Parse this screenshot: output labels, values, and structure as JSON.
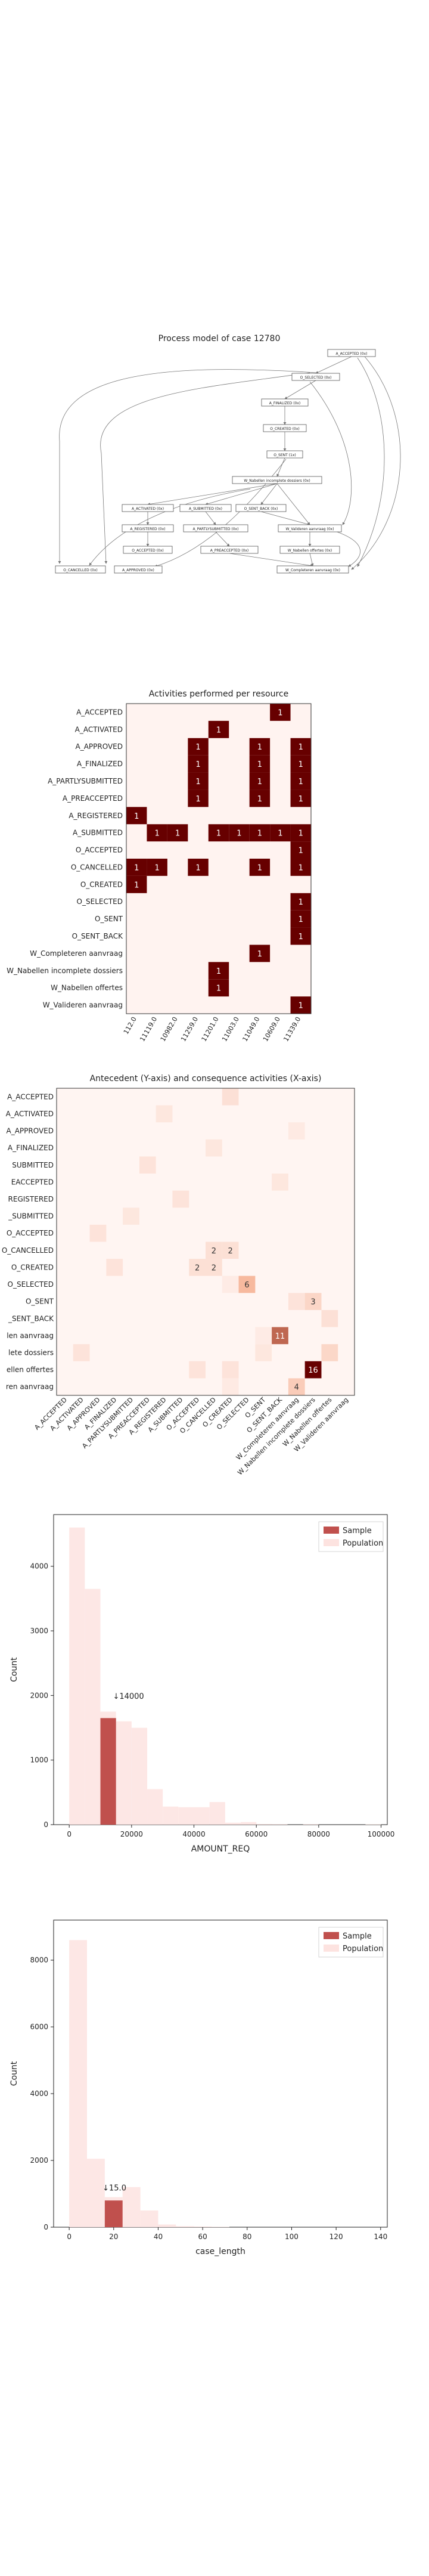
{
  "process_model": {
    "title": "Process model of case 12780",
    "nodes": [
      {
        "id": "accepted",
        "label": "A_ACCEPTED (0x)"
      },
      {
        "id": "selected",
        "label": "O_SELECTED (0x)"
      },
      {
        "id": "finalized",
        "label": "A_FINALIZED (0x)"
      },
      {
        "id": "created",
        "label": "O_CREATED (0x)"
      },
      {
        "id": "sent",
        "label": "O_SENT (1x)"
      },
      {
        "id": "nabellen",
        "label": "W_Nabellen incomplete dossiers (0x)"
      },
      {
        "id": "activated",
        "label": "A_ACTIVATED (0x)"
      },
      {
        "id": "submitted",
        "label": "A_SUBMITTED (0x)"
      },
      {
        "id": "sentback",
        "label": "O_SENT_BACK (0x)"
      },
      {
        "id": "registered",
        "label": "A_REGISTERED (0x)"
      },
      {
        "id": "partly",
        "label": "A_PARTLYSUBMITTED (0x)"
      },
      {
        "id": "valideren",
        "label": "W_Valideren aanvraag (0x)"
      },
      {
        "id": "oaccepted",
        "label": "O_ACCEPTED (0x)"
      },
      {
        "id": "preaccepted",
        "label": "A_PREACCEPTED (0x)"
      },
      {
        "id": "offertes",
        "label": "W_Nabellen offertes (0x)"
      },
      {
        "id": "cancelled",
        "label": "O_CANCELLED (0x)"
      },
      {
        "id": "approved",
        "label": "A_APPROVED (0x)"
      },
      {
        "id": "compleet",
        "label": "W_Completeren aanvraag (0x)"
      }
    ]
  },
  "chart_data": [
    {
      "type": "heatmap",
      "title": "Activities performed per resource",
      "rows": [
        "A_ACCEPTED",
        "A_ACTIVATED",
        "A_APPROVED",
        "A_FINALIZED",
        "A_PARTLYSUBMITTED",
        "A_PREACCEPTED",
        "A_REGISTERED",
        "A_SUBMITTED",
        "O_ACCEPTED",
        "O_CANCELLED",
        "O_CREATED",
        "O_SELECTED",
        "O_SENT",
        "O_SENT_BACK",
        "W_Completeren aanvraag",
        "W_Nabellen incomplete dossiers",
        "W_Nabellen offertes",
        "W_Valideren aanvraag"
      ],
      "cols": [
        "112.0",
        "11119.0",
        "10982.0",
        "11259.0",
        "11201.0",
        "11003.0",
        "11049.0",
        "10609.0",
        "11339.0"
      ],
      "cells": [
        [
          0,
          7,
          1
        ],
        [
          1,
          4,
          1
        ],
        [
          2,
          3,
          1
        ],
        [
          2,
          6,
          1
        ],
        [
          2,
          8,
          1
        ],
        [
          3,
          3,
          1
        ],
        [
          3,
          6,
          1
        ],
        [
          3,
          8,
          1
        ],
        [
          4,
          3,
          1
        ],
        [
          4,
          6,
          1
        ],
        [
          4,
          8,
          1
        ],
        [
          5,
          3,
          1
        ],
        [
          5,
          6,
          1
        ],
        [
          5,
          8,
          1
        ],
        [
          6,
          0,
          1
        ],
        [
          7,
          1,
          1
        ],
        [
          7,
          2,
          1
        ],
        [
          7,
          4,
          1
        ],
        [
          7,
          5,
          1
        ],
        [
          7,
          6,
          1
        ],
        [
          7,
          7,
          1
        ],
        [
          7,
          8,
          1
        ],
        [
          8,
          8,
          1
        ],
        [
          9,
          0,
          1
        ],
        [
          9,
          1,
          1
        ],
        [
          9,
          3,
          1
        ],
        [
          9,
          6,
          1
        ],
        [
          9,
          8,
          1
        ],
        [
          10,
          0,
          1
        ],
        [
          11,
          8,
          1
        ],
        [
          12,
          8,
          1
        ],
        [
          13,
          8,
          1
        ],
        [
          14,
          6,
          1
        ],
        [
          15,
          4,
          1
        ],
        [
          16,
          4,
          1
        ],
        [
          17,
          8,
          1
        ]
      ]
    },
    {
      "type": "heatmap",
      "title": "Antecedent (Y-axis) and consequence activities (X-axis)",
      "labels": [
        "A_ACCEPTED",
        "A_ACTIVATED",
        "A_APPROVED",
        "A_FINALIZED",
        "A_PARTLYSUBMITTED",
        "A_PREACCEPTED",
        "A_REGISTERED",
        "A_SUBMITTED",
        "O_ACCEPTED",
        "O_CANCELLED",
        "O_CREATED",
        "O_SELECTED",
        "O_SENT",
        "O_SENT_BACK",
        "W_Completeren aanvraag",
        "W_Nabellen incomplete dossiers",
        "W_Nabellen offertes",
        "W_Valideren aanvraag"
      ],
      "y_tick_labels": [
        "A_ACCEPTED",
        "A_ACTIVATED",
        "A_APPROVED",
        "A_FINALIZED",
        "SUBMITTED",
        "EACCEPTED",
        "REGISTERED",
        "_SUBMITTED",
        "O_ACCEPTED",
        "O_CANCELLED",
        "O_CREATED",
        "O_SELECTED",
        "O_SENT",
        "_SENT_BACK",
        "len aanvraag",
        "lete dossiers",
        "ellen offertes",
        "ren aanvraag"
      ],
      "annotated": [
        [
          9,
          9,
          "2"
        ],
        [
          9,
          10,
          "2"
        ],
        [
          10,
          8,
          "2"
        ],
        [
          10,
          9,
          "2"
        ],
        [
          11,
          11,
          "6"
        ],
        [
          12,
          15,
          "3"
        ],
        [
          14,
          13,
          "11"
        ],
        [
          16,
          15,
          "16"
        ],
        [
          17,
          14,
          "4"
        ]
      ],
      "faint": [
        [
          0,
          10,
          0.12
        ],
        [
          1,
          6,
          0.08
        ],
        [
          2,
          14,
          0.06
        ],
        [
          3,
          9,
          0.08
        ],
        [
          4,
          5,
          0.1
        ],
        [
          5,
          13,
          0.08
        ],
        [
          6,
          7,
          0.1
        ],
        [
          7,
          4,
          0.08
        ],
        [
          8,
          2,
          0.1
        ],
        [
          10,
          3,
          0.1
        ],
        [
          11,
          11,
          0.05
        ],
        [
          12,
          14,
          0.1
        ],
        [
          13,
          16,
          0.12
        ],
        [
          15,
          1,
          0.1
        ],
        [
          15,
          12,
          0.08
        ],
        [
          15,
          16,
          0.18
        ],
        [
          16,
          8,
          0.1
        ],
        [
          16,
          10,
          0.1
        ],
        [
          17,
          10,
          0.06
        ],
        [
          14,
          12,
          0.05
        ],
        [
          11,
          10,
          0.05
        ]
      ],
      "max_value": 16
    },
    {
      "type": "bar",
      "xlabel": "AMOUNT_REQ",
      "ylabel": "Count",
      "legend": [
        "Sample",
        "Population"
      ],
      "legend_position": "top-right",
      "xlim": [
        -5000,
        102000
      ],
      "ylim": [
        0,
        4800
      ],
      "x_ticks": [
        0,
        20000,
        40000,
        60000,
        80000,
        100000
      ],
      "y_ticks": [
        0,
        1000,
        2000,
        3000,
        4000
      ],
      "bin_width": 5000,
      "population": [
        {
          "x": 0,
          "count": 4600
        },
        {
          "x": 5000,
          "count": 3650
        },
        {
          "x": 10000,
          "count": 1750
        },
        {
          "x": 15000,
          "count": 1600
        },
        {
          "x": 20000,
          "count": 1500
        },
        {
          "x": 25000,
          "count": 550
        },
        {
          "x": 30000,
          "count": 280
        },
        {
          "x": 35000,
          "count": 270
        },
        {
          "x": 40000,
          "count": 270
        },
        {
          "x": 45000,
          "count": 350
        },
        {
          "x": 50000,
          "count": 30
        },
        {
          "x": 55000,
          "count": 40
        },
        {
          "x": 60000,
          "count": 10
        },
        {
          "x": 65000,
          "count": 8
        },
        {
          "x": 75000,
          "count": 8
        },
        {
          "x": 95000,
          "count": 5
        }
      ],
      "sample": [
        {
          "x": 10000,
          "count": 1650
        }
      ],
      "annotation": {
        "text": "↓14000",
        "x": 14000,
        "y": 1950
      }
    },
    {
      "type": "bar",
      "xlabel": "case_length",
      "ylabel": "Count",
      "legend": [
        "Sample",
        "Population"
      ],
      "legend_position": "top-right",
      "xlim": [
        -7,
        143
      ],
      "ylim": [
        0,
        9200
      ],
      "x_ticks": [
        0,
        20,
        40,
        60,
        80,
        100,
        120,
        140
      ],
      "y_ticks": [
        0,
        2000,
        4000,
        6000,
        8000
      ],
      "bin_width": 8,
      "population": [
        {
          "x": 0,
          "count": 8600
        },
        {
          "x": 8,
          "count": 2050
        },
        {
          "x": 16,
          "count": 900
        },
        {
          "x": 24,
          "count": 1200
        },
        {
          "x": 32,
          "count": 500
        },
        {
          "x": 40,
          "count": 80
        },
        {
          "x": 48,
          "count": 30
        },
        {
          "x": 56,
          "count": 20
        },
        {
          "x": 64,
          "count": 10
        }
      ],
      "sample": [
        {
          "x": 16,
          "count": 800
        }
      ],
      "annotation": {
        "text": "↓15.0",
        "x": 15,
        "y": 1100
      }
    }
  ],
  "colors": {
    "dark": "#670000",
    "sample": "#c0504d",
    "population": "#fde3e0",
    "heat_low": "#fff3f0",
    "node_border": "#555555",
    "edge": "#777777"
  }
}
